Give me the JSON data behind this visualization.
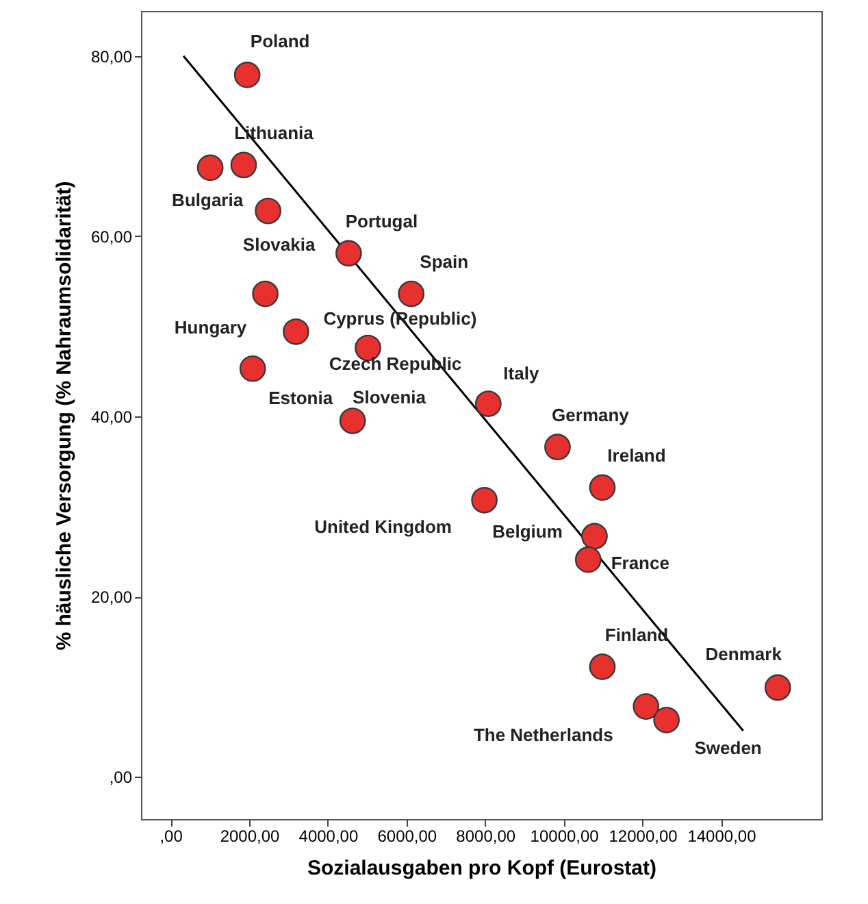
{
  "chart_data": {
    "type": "scatter",
    "xlabel": "Sozialausgaben pro Kopf (Eurostat)",
    "ylabel": "% häusliche Versorgung (% Nahraumsolidarität)",
    "xlim": [
      -750,
      16550
    ],
    "ylim": [
      -4.7,
      85
    ],
    "xticks": [
      {
        "value": 0,
        "label": ",00"
      },
      {
        "value": 2000,
        "label": "2000,00"
      },
      {
        "value": 4000,
        "label": "4000,00"
      },
      {
        "value": 6000,
        "label": "6000,00"
      },
      {
        "value": 8000,
        "label": "8000,00"
      },
      {
        "value": 10000,
        "label": "10000,00"
      },
      {
        "value": 12000,
        "label": "12000,00"
      },
      {
        "value": 14000,
        "label": "14000,00"
      }
    ],
    "yticks": [
      {
        "value": 0,
        "label": ",00"
      },
      {
        "value": 20,
        "label": "20,00"
      },
      {
        "value": 40,
        "label": "40,00"
      },
      {
        "value": 60,
        "label": "60,00"
      },
      {
        "value": 80,
        "label": "80,00"
      }
    ],
    "grid": false,
    "marker": "circle",
    "series": [
      {
        "color": "#e8312f",
        "x": [
          1950,
          1860,
          1010,
          2480,
          4530,
          2410,
          6120,
          3190,
          5020,
          2090,
          4630,
          8080,
          9840,
          10980,
          7980,
          10780,
          10620,
          10980,
          12090,
          12610,
          15440
        ],
        "values": [
          77.9,
          67.9,
          67.6,
          62.8,
          58.1,
          53.6,
          53.6,
          49.4,
          47.6,
          45.3,
          39.5,
          41.4,
          36.6,
          32.1,
          30.7,
          26.7,
          24.1,
          12.2,
          7.8,
          6.3,
          9.9
        ],
        "value_labels": [
          "Poland",
          "Lithuania",
          "Bulgaria",
          "Slovakia",
          "Portugal",
          "Hungary",
          "Spain",
          "Cyprus (Republic)",
          "Czech Republic",
          "Estonia",
          "Slovenia",
          "Italy",
          "Germany",
          "Ireland",
          "United Kingdom",
          "Belgium",
          "France",
          "Finland",
          "The Netherlands",
          "Sweden",
          "Denmark"
        ]
      },
      {
        "type": "line",
        "marker": "none",
        "color": "#000000",
        "x": [
          330,
          14560
        ],
        "values": [
          80.0,
          5.1
        ]
      }
    ]
  }
}
